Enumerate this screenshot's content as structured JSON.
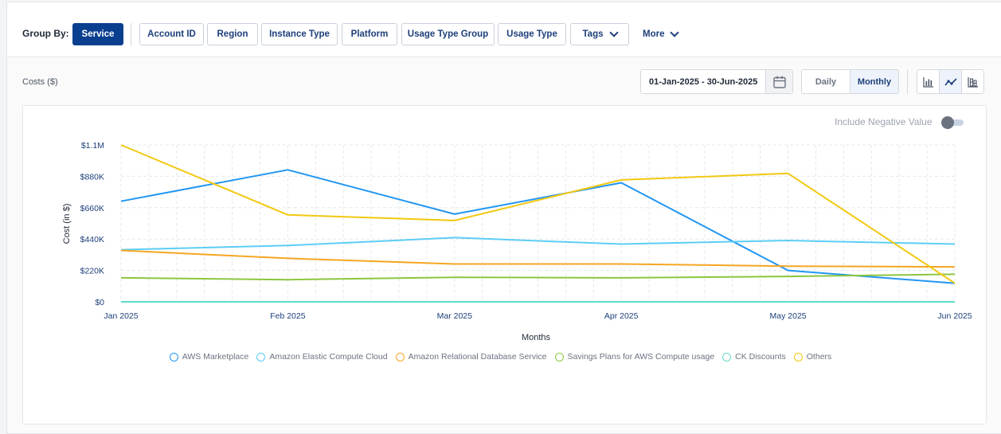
{
  "group_by": {
    "label": "Group By:",
    "buttons": [
      {
        "label": "Service",
        "active": true
      },
      {
        "label": "Account ID",
        "active": false
      },
      {
        "label": "Region",
        "active": false
      },
      {
        "label": "Instance Type",
        "active": false
      },
      {
        "label": "Platform",
        "active": false
      },
      {
        "label": "Usage Type Group",
        "active": false
      },
      {
        "label": "Usage Type",
        "active": false
      },
      {
        "label": "Tags",
        "active": false
      }
    ],
    "more_label": "More"
  },
  "toolbar": {
    "costs_label": "Costs ($)",
    "date_range": "01-Jan-2025 - 30-Jun-2025",
    "granularity": [
      {
        "label": "Daily",
        "active": false
      },
      {
        "label": "Monthly",
        "active": true
      }
    ],
    "chart_types": [
      {
        "icon": "bar-chart-icon",
        "active": false
      },
      {
        "icon": "line-chart-icon",
        "active": true
      },
      {
        "icon": "table-icon",
        "active": false
      }
    ]
  },
  "include_negative": {
    "label": "Include Negative Value",
    "enabled": false
  },
  "chart_data": {
    "type": "line",
    "xlabel": "Months",
    "ylabel": "Cost (in $)",
    "x": [
      "Jan 2025",
      "Feb 2025",
      "Mar 2025",
      "Apr 2025",
      "May 2025",
      "Jun 2025"
    ],
    "y_ticks": [
      "$0",
      "$220K",
      "$440K",
      "$660K",
      "$880K",
      "$1.1M"
    ],
    "ylim": [
      0,
      1100000
    ],
    "grid": true,
    "legend_position": "bottom",
    "series": [
      {
        "name": "AWS Marketplace",
        "color": "#2196f3",
        "values": [
          705000,
          925000,
          615000,
          835000,
          220000,
          130000
        ]
      },
      {
        "name": "Amazon Elastic Compute Cloud",
        "color": "#5ccdf5",
        "values": [
          365000,
          395000,
          450000,
          405000,
          430000,
          405000
        ]
      },
      {
        "name": "Amazon Relational Database Service",
        "color": "#f5a623",
        "values": [
          360000,
          305000,
          265000,
          265000,
          250000,
          245000
        ]
      },
      {
        "name": "Savings Plans for AWS Compute usage",
        "color": "#8cc63f",
        "values": [
          168000,
          155000,
          172000,
          168000,
          178000,
          193000
        ]
      },
      {
        "name": "CK Discounts",
        "color": "#61dac7",
        "values": [
          0,
          0,
          0,
          0,
          0,
          0
        ]
      },
      {
        "name": "Others",
        "color": "#f2c811",
        "values": [
          1100000,
          610000,
          570000,
          855000,
          900000,
          130000
        ]
      }
    ]
  }
}
